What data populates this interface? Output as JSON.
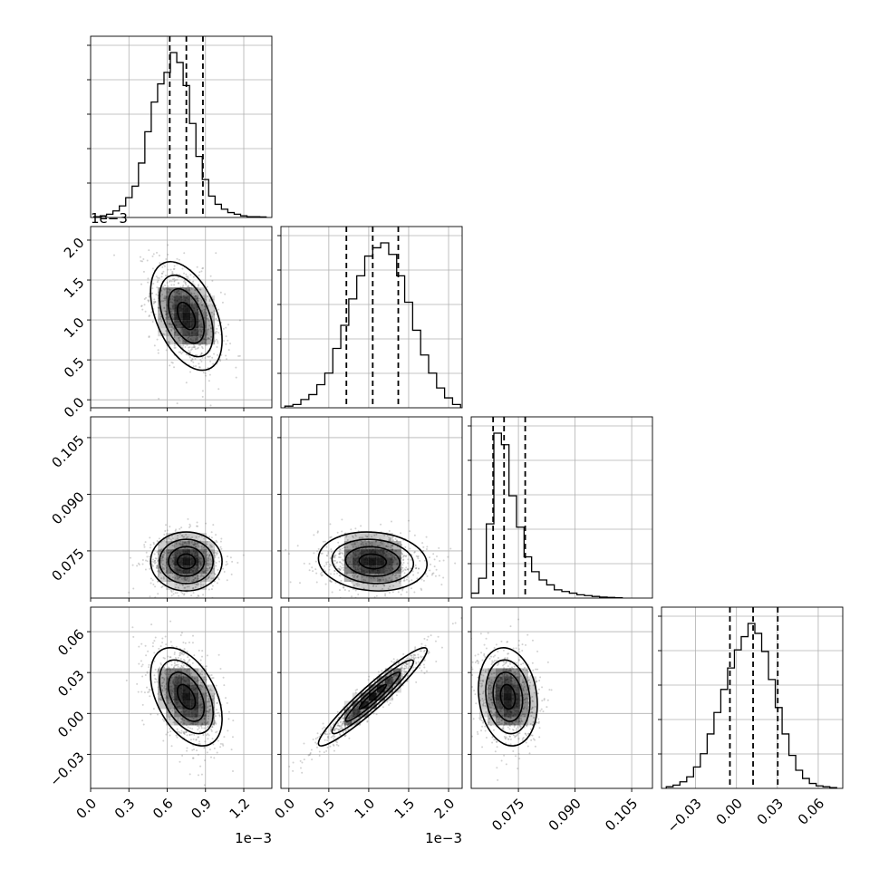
{
  "chart_data": {
    "type": "corner",
    "params": [
      {
        "range": [
          0,
          0.00142
        ],
        "ticks": [
          0.0,
          0.3,
          0.6,
          0.9,
          1.2
        ],
        "tick_labels": [
          "0.0",
          "0.3",
          "0.6",
          "0.9",
          "1.2"
        ],
        "offset_text": "1e−3",
        "hist_bins": [
          5e-05,
          0.0001,
          0.00015,
          0.0002,
          0.00025,
          0.0003,
          0.00035,
          0.0004,
          0.00045,
          0.0005,
          0.00055,
          0.0006,
          0.00065,
          0.0007,
          0.00075,
          0.0008,
          0.00085,
          0.0009,
          0.00095,
          0.001,
          0.00105,
          0.0011,
          0.00115,
          0.0012,
          0.00125,
          0.0013,
          0.00135
        ],
        "hist_counts": [
          0.5,
          1,
          2,
          4,
          7,
          12,
          19,
          33,
          52,
          70,
          81,
          88,
          100,
          94,
          80,
          57,
          37,
          23,
          13,
          8,
          5,
          3,
          2,
          1,
          0.5,
          0.5,
          0.3
        ],
        "quantiles": [
          0.00062,
          0.00075,
          0.00088
        ]
      },
      {
        "range": [
          -0.0001,
          0.00217
        ],
        "ticks": [
          0.0,
          0.5,
          1.0,
          1.5,
          2.0
        ],
        "tick_labels": [
          "0.0",
          "0.5",
          "1.0",
          "1.5",
          "2.0"
        ],
        "offset_text": "1e−3",
        "hist_bins": [
          0.0,
          0.0001,
          0.0002,
          0.0003,
          0.0004,
          0.0005,
          0.0006,
          0.0007,
          0.0008,
          0.0009,
          0.001,
          0.0011,
          0.0012,
          0.0013,
          0.0014,
          0.0015,
          0.0016,
          0.0017,
          0.0018,
          0.0019,
          0.002,
          0.0021
        ],
        "hist_counts": [
          1,
          2,
          5,
          8,
          14,
          21,
          36,
          50,
          66,
          80,
          92,
          97,
          100,
          93,
          80,
          64,
          47,
          32,
          21,
          12,
          6,
          2
        ],
        "quantiles": [
          0.00072,
          0.00105,
          0.00137
        ]
      },
      {
        "range": [
          0.0625,
          0.1105
        ],
        "ticks": [
          0.075,
          0.09,
          0.105
        ],
        "tick_labels": [
          "0.075",
          "0.090",
          "0.105"
        ],
        "offset_text": "",
        "hist_bins": [
          0.0635,
          0.0655,
          0.0675,
          0.0695,
          0.0715,
          0.0735,
          0.0755,
          0.0775,
          0.0795,
          0.0815,
          0.0835,
          0.0855,
          0.0875,
          0.0895,
          0.0915,
          0.0935,
          0.0955,
          0.0975,
          0.0995,
          0.1015
        ],
        "hist_counts": [
          3,
          12,
          45,
          100,
          93,
          62,
          43,
          25,
          16,
          11,
          8,
          5,
          4,
          3,
          2,
          1.5,
          1,
          0.6,
          0.4,
          0.2
        ],
        "quantiles": [
          0.0683,
          0.0712,
          0.0768
        ]
      },
      {
        "range": [
          -0.055,
          0.078
        ],
        "ticks": [
          -0.03,
          0.0,
          0.03,
          0.06
        ],
        "tick_labels": [
          "−0.03",
          "0.00",
          "0.03",
          "0.06"
        ],
        "offset_text": "",
        "hist_bins": [
          -0.049,
          -0.044,
          -0.039,
          -0.034,
          -0.029,
          -0.024,
          -0.019,
          -0.014,
          -0.009,
          -0.004,
          0.001,
          0.006,
          0.011,
          0.016,
          0.021,
          0.026,
          0.031,
          0.036,
          0.041,
          0.046,
          0.051,
          0.056,
          0.061,
          0.066,
          0.071
        ],
        "hist_counts": [
          1,
          2,
          4,
          7,
          13,
          21,
          33,
          46,
          60,
          73,
          84,
          92,
          100,
          94,
          83,
          66,
          49,
          33,
          20,
          11,
          6,
          3,
          1.5,
          1,
          0.5
        ],
        "quantiles": [
          -0.0048,
          0.0122,
          0.0303
        ]
      }
    ],
    "pairs": [
      {
        "row": 1,
        "col": 0,
        "center": [
          0.00075,
          0.00105
        ],
        "spread": [
          0.00014,
          0.00034
        ],
        "corr": -0.45
      },
      {
        "row": 2,
        "col": 0,
        "center": [
          0.00075,
          0.0722
        ],
        "spread": [
          0.00014,
          0.0039
        ],
        "corr": 0.0
      },
      {
        "row": 2,
        "col": 1,
        "center": [
          0.00105,
          0.0722
        ],
        "spread": [
          0.00034,
          0.0039
        ],
        "corr": -0.1
      },
      {
        "row": 3,
        "col": 0,
        "center": [
          0.00075,
          0.0122
        ],
        "spread": [
          0.00014,
          0.018
        ],
        "corr": -0.45
      },
      {
        "row": 3,
        "col": 1,
        "center": [
          0.00105,
          0.0122
        ],
        "spread": [
          0.00034,
          0.018
        ],
        "corr": 0.95
      },
      {
        "row": 3,
        "col": 2,
        "center": [
          0.0722,
          0.0122
        ],
        "spread": [
          0.0039,
          0.018
        ],
        "corr": -0.15
      }
    ],
    "contour_levels_sigma": [
      0.5,
      1.0,
      1.5,
      2.0
    ],
    "grid": true,
    "colors": {
      "line": "#000000",
      "grid": "#b0b0b0",
      "scatter": "#7f7f7f",
      "density": "#000000"
    }
  }
}
